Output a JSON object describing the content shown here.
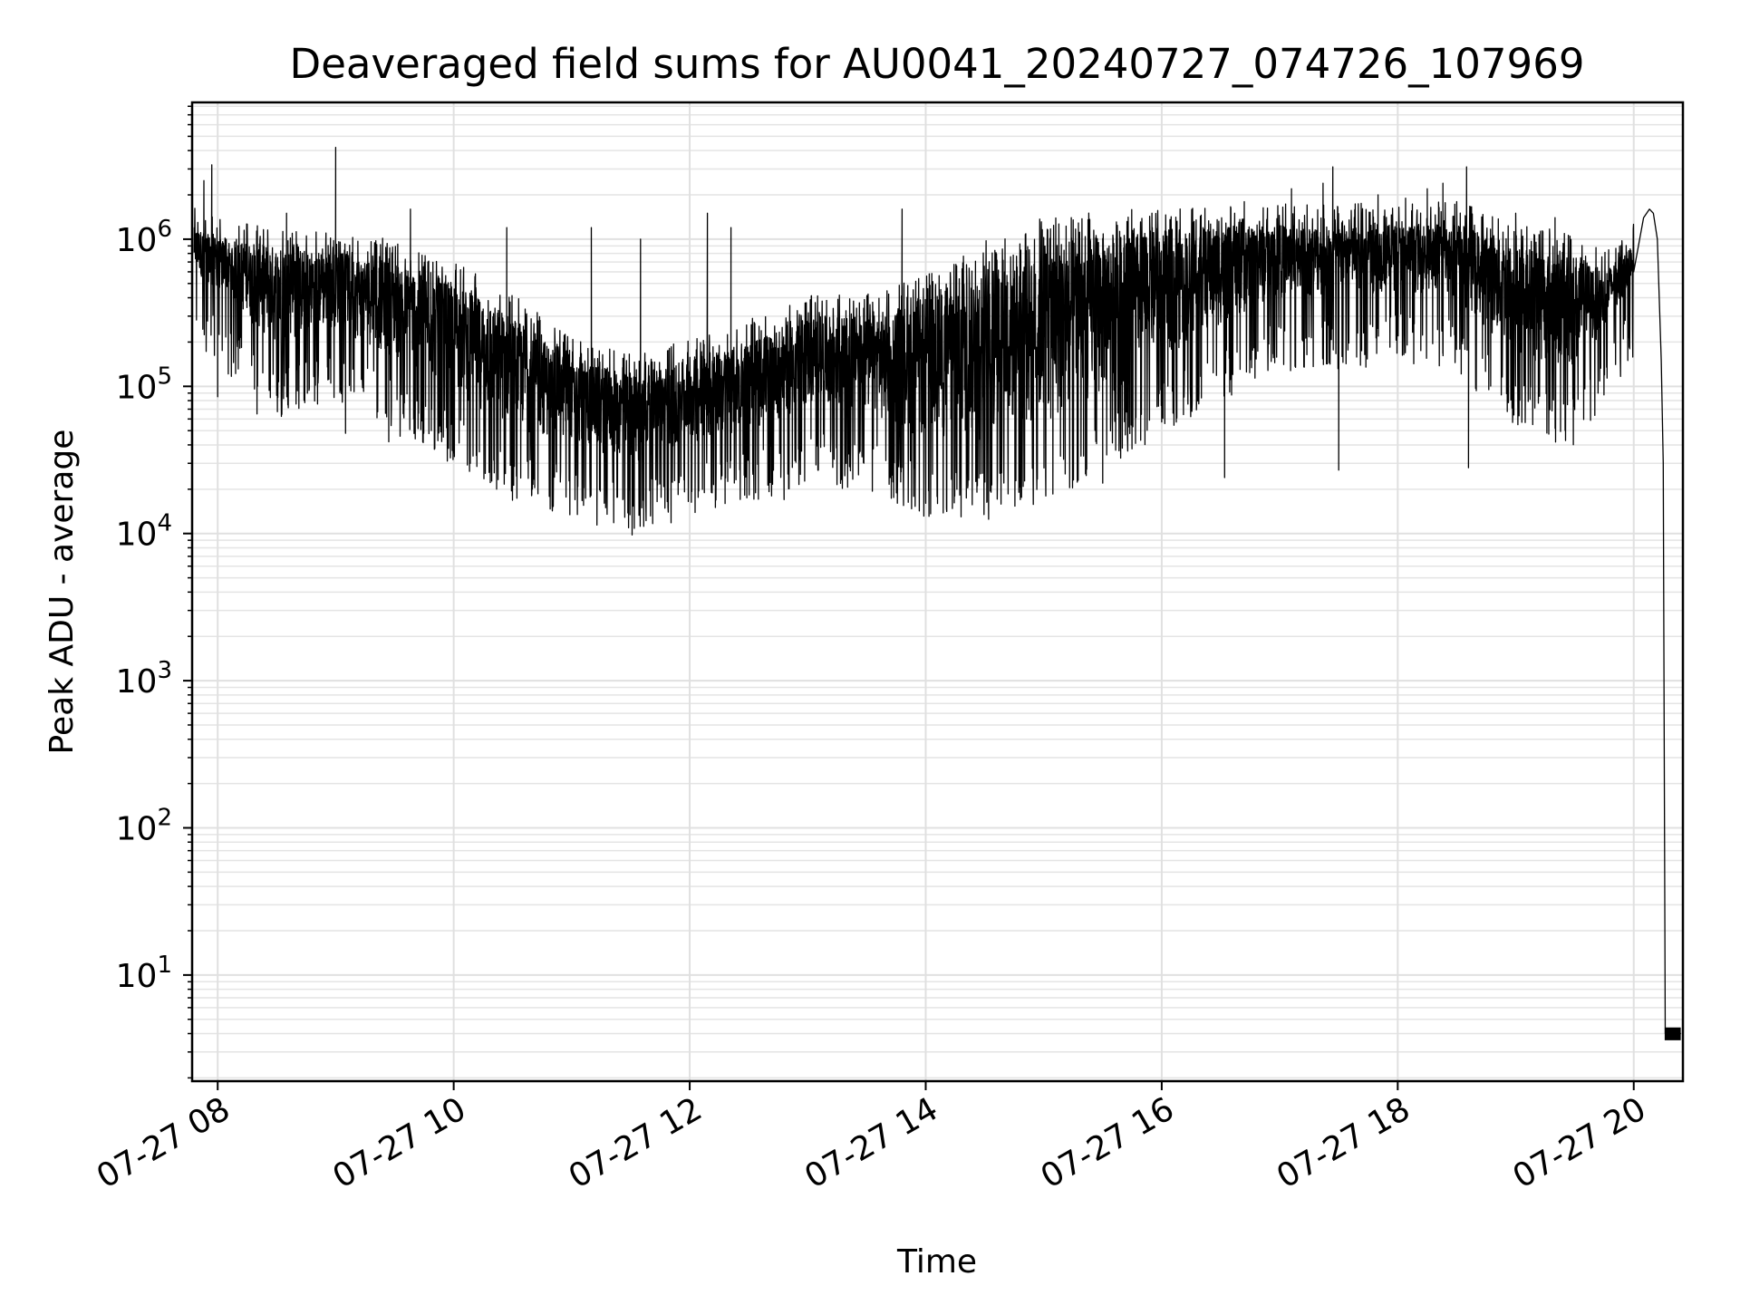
{
  "chart_data": {
    "type": "line",
    "title": "Deaveraged field sums for AU0041_20240727_074726_107969",
    "xlabel": "Time",
    "ylabel": "Peak ADU - average",
    "x_scale": "time",
    "y_scale": "log",
    "xlim": [
      "2024-07-27 07:47",
      "2024-07-27 20:25"
    ],
    "ylim": [
      1.9,
      8500000
    ],
    "grid": true,
    "line_color": "#000000",
    "x_ticks": [
      {
        "time": "2024-07-27 08:00",
        "label": "07-27 08"
      },
      {
        "time": "2024-07-27 10:00",
        "label": "07-27 10"
      },
      {
        "time": "2024-07-27 12:00",
        "label": "07-27 12"
      },
      {
        "time": "2024-07-27 14:00",
        "label": "07-27 14"
      },
      {
        "time": "2024-07-27 16:00",
        "label": "07-27 16"
      },
      {
        "time": "2024-07-27 18:00",
        "label": "07-27 18"
      },
      {
        "time": "2024-07-27 20:00",
        "label": "07-27 20"
      }
    ],
    "y_ticks": [
      {
        "value": 10,
        "base": "10",
        "exp": "1"
      },
      {
        "value": 100,
        "base": "10",
        "exp": "2"
      },
      {
        "value": 1000,
        "base": "10",
        "exp": "3"
      },
      {
        "value": 10000,
        "base": "10",
        "exp": "4"
      },
      {
        "value": 100000,
        "base": "10",
        "exp": "5"
      },
      {
        "value": 1000000,
        "base": "10",
        "exp": "6"
      }
    ],
    "series": [
      {
        "trend": [
          [
            "2024-07-27 07:48",
            600000,
            1200000
          ],
          [
            "2024-07-27 08:00",
            450000,
            1000000
          ],
          [
            "2024-07-27 08:30",
            180000,
            900000
          ],
          [
            "2024-07-27 09:00",
            250000,
            800000
          ],
          [
            "2024-07-27 09:30",
            150000,
            700000
          ],
          [
            "2024-07-27 10:00",
            90000,
            500000
          ],
          [
            "2024-07-27 10:30",
            50000,
            300000
          ],
          [
            "2024-07-27 11:00",
            40000,
            150000
          ],
          [
            "2024-07-27 11:30",
            30000,
            120000
          ],
          [
            "2024-07-27 12:00",
            40000,
            150000
          ],
          [
            "2024-07-27 12:30",
            50000,
            200000
          ],
          [
            "2024-07-27 13:00",
            70000,
            300000
          ],
          [
            "2024-07-27 13:30",
            60000,
            300000
          ],
          [
            "2024-07-27 14:00",
            40000,
            400000
          ],
          [
            "2024-07-27 14:30",
            40000,
            700000
          ],
          [
            "2024-07-27 15:00",
            50000,
            1000000
          ],
          [
            "2024-07-27 15:30",
            80000,
            1100000
          ],
          [
            "2024-07-27 16:00",
            150000,
            1150000
          ],
          [
            "2024-07-27 16:30",
            250000,
            1200000
          ],
          [
            "2024-07-27 17:00",
            400000,
            1250000
          ],
          [
            "2024-07-27 17:30",
            400000,
            1250000
          ],
          [
            "2024-07-27 18:00",
            450000,
            1250000
          ],
          [
            "2024-07-27 18:30",
            400000,
            1300000
          ],
          [
            "2024-07-27 19:00",
            150000,
            900000
          ],
          [
            "2024-07-27 19:30",
            120000,
            800000
          ],
          [
            "2024-07-27 19:45",
            250000,
            600000
          ],
          [
            "2024-07-27 20:00",
            500000,
            900000
          ],
          [
            "2024-07-27 20:10",
            1300000,
            1500000
          ]
        ],
        "spikes": [
          [
            "2024-07-27 07:53",
            2500000
          ],
          [
            "2024-07-27 07:57",
            3200000
          ],
          [
            "2024-07-27 08:00",
            85000
          ],
          [
            "2024-07-27 08:20",
            65000
          ],
          [
            "2024-07-27 08:35",
            1500000
          ],
          [
            "2024-07-27 09:00",
            4200000
          ],
          [
            "2024-07-27 09:05",
            48000
          ],
          [
            "2024-07-27 09:27",
            42000
          ],
          [
            "2024-07-27 09:38",
            1600000
          ],
          [
            "2024-07-27 10:27",
            1200000
          ],
          [
            "2024-07-27 10:40",
            20000
          ],
          [
            "2024-07-27 11:10",
            1200000
          ],
          [
            "2024-07-27 11:26",
            17000
          ],
          [
            "2024-07-27 11:35",
            1000000
          ],
          [
            "2024-07-27 12:09",
            1500000
          ],
          [
            "2024-07-27 12:21",
            1200000
          ],
          [
            "2024-07-27 12:18",
            16000
          ],
          [
            "2024-07-27 12:48",
            17000
          ],
          [
            "2024-07-27 13:48",
            1600000
          ],
          [
            "2024-07-27 14:06",
            16000
          ],
          [
            "2024-07-27 14:32",
            12500
          ],
          [
            "2024-07-27 15:14",
            1400000
          ],
          [
            "2024-07-27 15:30",
            22000
          ],
          [
            "2024-07-27 15:55",
            1500000
          ],
          [
            "2024-07-27 16:32",
            24000
          ],
          [
            "2024-07-27 16:42",
            1800000
          ],
          [
            "2024-07-27 17:06",
            2200000
          ],
          [
            "2024-07-27 17:22",
            2400000
          ],
          [
            "2024-07-27 17:27",
            3100000
          ],
          [
            "2024-07-27 17:30",
            27000
          ],
          [
            "2024-07-27 17:50",
            2000000
          ],
          [
            "2024-07-27 18:04",
            1900000
          ],
          [
            "2024-07-27 18:15",
            2200000
          ],
          [
            "2024-07-27 18:23",
            2400000
          ],
          [
            "2024-07-27 18:30",
            1800000
          ],
          [
            "2024-07-27 18:35",
            3100000
          ],
          [
            "2024-07-27 18:36",
            28000
          ],
          [
            "2024-07-27 19:00",
            1500000
          ],
          [
            "2024-07-27 19:20",
            1400000
          ],
          [
            "2024-07-27 20:05",
            2100000
          ]
        ],
        "tail": [
          [
            "2024-07-27 20:00",
            600000
          ],
          [
            "2024-07-27 20:05",
            1400000
          ],
          [
            "2024-07-27 20:08",
            1600000
          ],
          [
            "2024-07-27 20:10",
            1500000
          ],
          [
            "2024-07-27 20:12",
            1000000
          ],
          [
            "2024-07-27 20:14",
            150000
          ],
          [
            "2024-07-27 20:15",
            30000
          ],
          [
            "2024-07-27 20:16",
            4
          ],
          [
            "2024-07-27 20:24",
            4
          ]
        ]
      }
    ]
  }
}
